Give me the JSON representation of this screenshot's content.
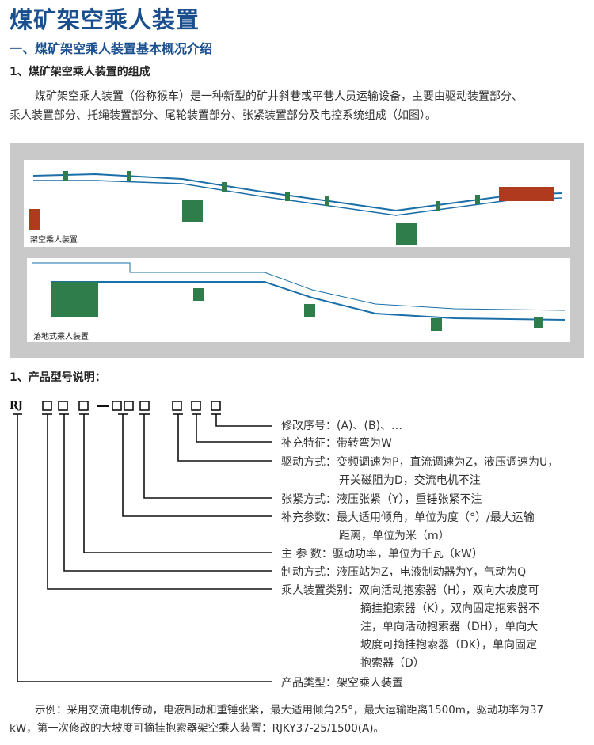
{
  "title": "煤矿架空乘人装置",
  "section1": "一、煤矿架空乘人装置基本概况介绍",
  "sub1": "1、煤矿架空乘人装置的组成",
  "intro_line1": "煤矿架空乘人装置（俗称猴车）是一种新型的矿井斜巷或平巷人员运输设备，主要由驱动装置部分、",
  "intro_line2": "乘人装置部分、托绳装置部分、尾轮装置部分、张紧装置部分及电控系统组成（如图）。",
  "figure": {
    "panel1_label": "架空乘人装置",
    "panel2_label": "落地式乘人装置"
  },
  "sub2": "1、产品型号说明：",
  "model_prefix": "RJ",
  "labels": [
    "修改序号：(A)、(B)、…",
    "补充特征：带转弯为W",
    "驱动方式：变频调速为P，直流调速为Z，液压调速为U，",
    "开关磁阻为D，交流电机不注",
    "张紧方式：液压张紧（Y），重锤张紧不注",
    "补充参数：最大适用倾角，单位为度（°）/最大运输",
    "距离，单位为米（m）",
    "主 参 数：驱动功率，单位为千瓦（kW）",
    "制动方式：液压站为Z，电液制动器为Y，气动为Q",
    "乘人装置类别：双向活动抱索器（H），双向大坡度可",
    "摘挂抱索器（K），双向固定抱索器不",
    "注，单向活动抱索器（DH），单向大",
    "坡度可摘挂抱索器（DK），单向固定",
    "抱索器（D）",
    "产品类型：架空乘人装置"
  ],
  "example_line1": "示例：采用交流电机传动，电液制动和重锤张紧，最大适用倾角25°，最大运输距离1500m，驱动功率为37",
  "example_line2": "kW，第一次修改的大坡度可摘挂抱索器架空乘人装置：RJKY37-25/1500(A)。",
  "colors": {
    "heading": "#1a4f8f",
    "rope": "#1a6fa8",
    "equipment": "#b03a1e",
    "chair": "#2f7d4a"
  }
}
